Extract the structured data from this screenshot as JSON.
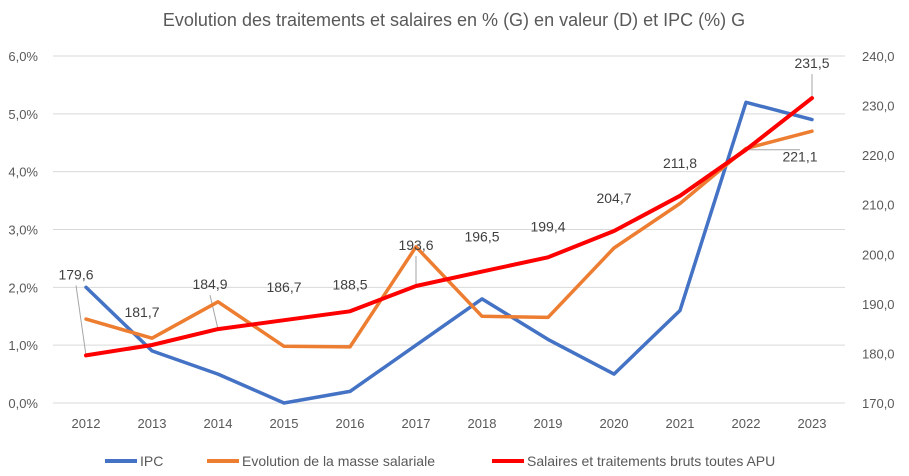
{
  "chart_data": {
    "type": "line",
    "title": "Evolution des traitements et salaires en % (G) en valeur (D) et IPC (%) G",
    "categories": [
      "2012",
      "2013",
      "2014",
      "2015",
      "2016",
      "2017",
      "2018",
      "2019",
      "2020",
      "2021",
      "2022",
      "2023"
    ],
    "y_left": {
      "range": [
        0,
        6
      ],
      "ticks": [
        0,
        1,
        2,
        3,
        4,
        5,
        6
      ],
      "tick_labels": [
        "0,0%",
        "1,0%",
        "2,0%",
        "3,0%",
        "4,0%",
        "5,0%",
        "6,0%"
      ]
    },
    "y_right": {
      "range": [
        170,
        240
      ],
      "ticks": [
        170,
        180,
        190,
        200,
        210,
        220,
        230,
        240
      ],
      "tick_labels": [
        "170,0",
        "180,0",
        "190,0",
        "200,0",
        "210,0",
        "220,0",
        "230,0",
        "240,0"
      ]
    },
    "grid": true,
    "legend_position": "bottom",
    "series": [
      {
        "name": "IPC",
        "axis": "left",
        "color": "#4472C4",
        "values": [
          2.0,
          0.9,
          0.5,
          0.0,
          0.2,
          1.0,
          1.8,
          1.1,
          0.5,
          1.6,
          5.2,
          4.9
        ]
      },
      {
        "name": "Evolution de la masse salariale",
        "axis": "left",
        "color": "#ED7D31",
        "values": [
          1.45,
          1.12,
          1.75,
          0.98,
          0.97,
          2.7,
          1.5,
          1.48,
          2.68,
          3.45,
          4.4,
          4.7
        ]
      },
      {
        "name": "Salaires et traitements bruts toutes APU",
        "axis": "right",
        "color": "#FF0000",
        "values": [
          179.6,
          181.7,
          184.9,
          186.7,
          188.5,
          193.6,
          196.5,
          199.4,
          204.7,
          211.8,
          221.1,
          231.5
        ],
        "data_labels": [
          "179,6",
          "181,7",
          "184,9",
          "186,7",
          "188,5",
          "193,6",
          "196,5",
          "199,4",
          "204,7",
          "211,8",
          "221,1",
          "231,5"
        ]
      }
    ]
  }
}
